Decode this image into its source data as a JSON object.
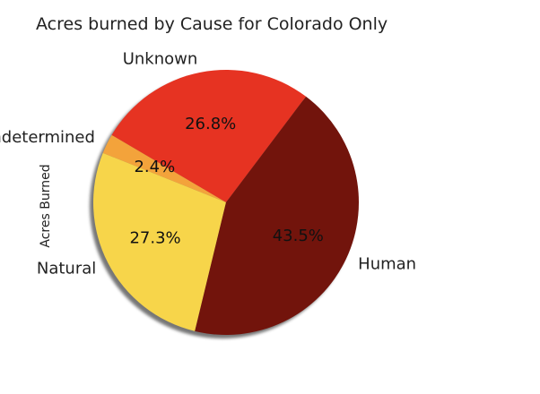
{
  "chart_data": {
    "type": "pie",
    "title": "Acres burned by Cause for Colorado Only",
    "ylabel": "Acres Burned",
    "shadow": true,
    "slices": [
      {
        "label": "Unknown",
        "percent": 26.8,
        "display": "26.8%",
        "color": "#e63322"
      },
      {
        "label": "Undetermined",
        "percent": 2.4,
        "display": "2.4%",
        "color": "#f3a33b"
      },
      {
        "label": "Natural",
        "percent": 27.3,
        "display": "27.3%",
        "color": "#f7d54a"
      },
      {
        "label": "Human",
        "percent": 43.5,
        "display": "43.5%",
        "color": "#72140c"
      }
    ]
  }
}
